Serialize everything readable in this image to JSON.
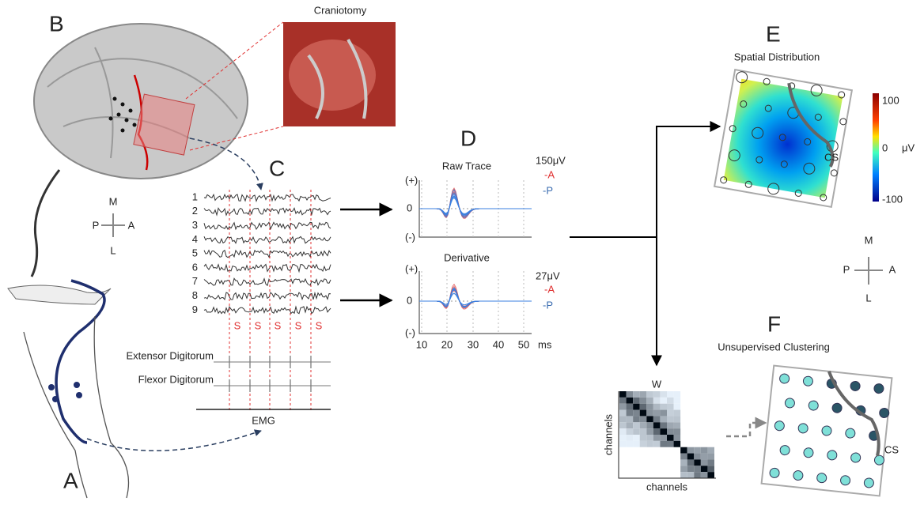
{
  "panel_b": {
    "letter": "B",
    "photo_title": "Craniotomy"
  },
  "panel_a": {
    "letter": "A"
  },
  "compass_left": {
    "m": "M",
    "p": "P",
    "a": "A",
    "l": "L"
  },
  "panel_c": {
    "letter": "C",
    "channels": [
      "1",
      "2",
      "3",
      "4",
      "5",
      "6",
      "7",
      "8",
      "9"
    ],
    "stim": [
      "S",
      "S",
      "S",
      "S",
      "S"
    ],
    "muscles": [
      "Extensor Digitorum",
      "Flexor Digitorum"
    ],
    "emg": "EMG"
  },
  "panel_d": {
    "letter": "D",
    "raw": {
      "title": "Raw Trace",
      "scale": "150μV",
      "legend": [
        "-A",
        "-P"
      ],
      "y": [
        "(+)",
        "0",
        "(-)"
      ]
    },
    "derivative": {
      "title": "Derivative",
      "scale": "27μV",
      "legend": [
        "-A",
        "-P"
      ],
      "y": [
        "(+)",
        "0",
        "(-)"
      ]
    },
    "x": [
      "10",
      "20",
      "30",
      "40",
      "50"
    ],
    "x_unit": "ms"
  },
  "panel_e": {
    "letter": "E",
    "title": "Spatial Distribution",
    "colorbar": [
      "100",
      "0",
      "-100"
    ],
    "unit": "μV",
    "cs": "CS"
  },
  "compass_right": {
    "m": "M",
    "p": "P",
    "a": "A",
    "l": "L"
  },
  "panel_f": {
    "letter": "F",
    "title": "Unsupervised Clustering",
    "matrix": "W",
    "x_label": "channels",
    "y_label": "channels",
    "cs": "CS"
  }
}
